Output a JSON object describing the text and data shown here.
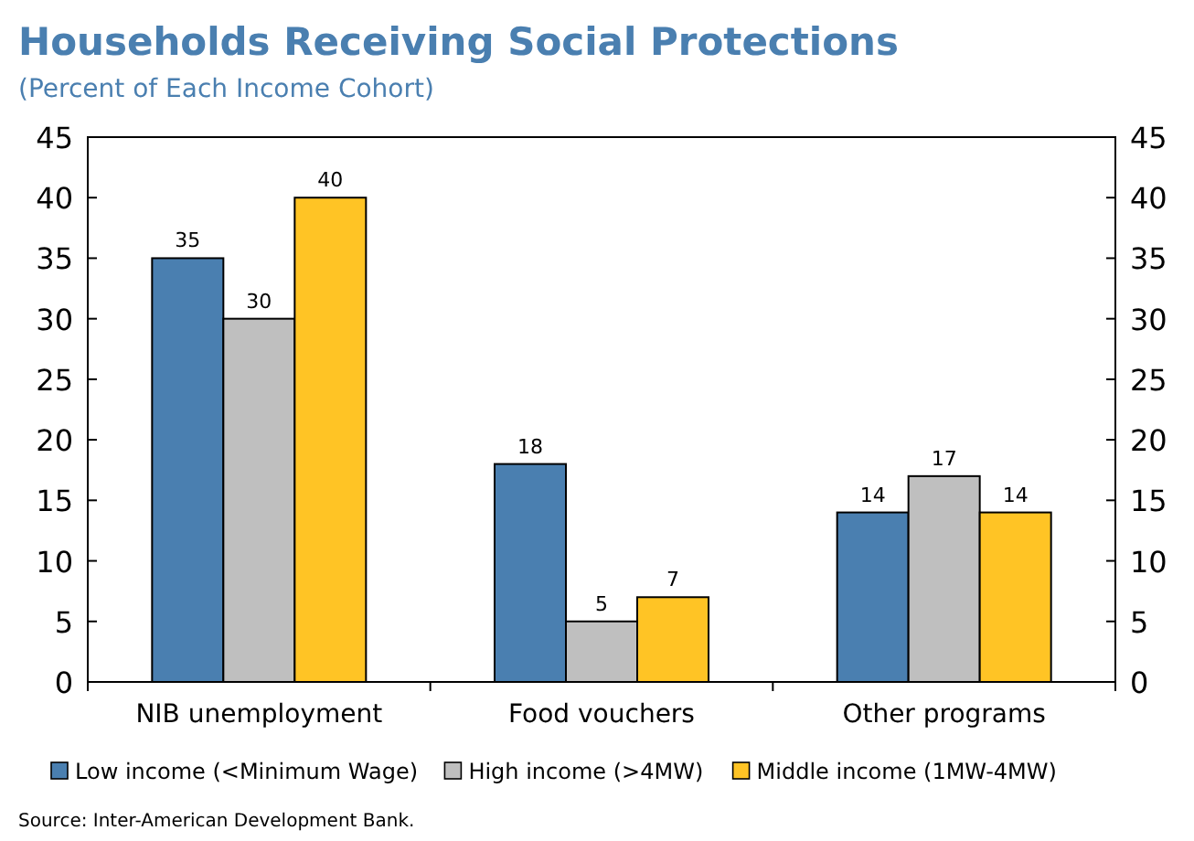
{
  "chart_data": {
    "type": "bar",
    "title": "Households Receiving Social Protections",
    "subtitle": "(Percent of Each Income Cohort)",
    "categories": [
      "NIB unemployment",
      "Food vouchers",
      "Other programs"
    ],
    "series": [
      {
        "name": "Low income (<Minimum Wage)",
        "color": "#4a7fb0",
        "values": [
          35,
          18,
          14
        ]
      },
      {
        "name": "High income (>4MW)",
        "color": "#bfbfbf",
        "values": [
          30,
          5,
          17
        ]
      },
      {
        "name": "Middle income (1MW-4MW)",
        "color": "#ffc425",
        "values": [
          40,
          7,
          14
        ]
      }
    ],
    "ylim": [
      0,
      45
    ],
    "yticks": [
      0,
      5,
      10,
      15,
      20,
      25,
      30,
      35,
      40,
      45
    ],
    "y2lim": [
      0,
      45
    ],
    "y2ticks": [
      0,
      5,
      10,
      15,
      20,
      25,
      30,
      35,
      40,
      45
    ],
    "data_labels": true,
    "grid": false,
    "legend": "bottom",
    "annotations": [
      "Source: Inter-American Development Bank."
    ]
  }
}
